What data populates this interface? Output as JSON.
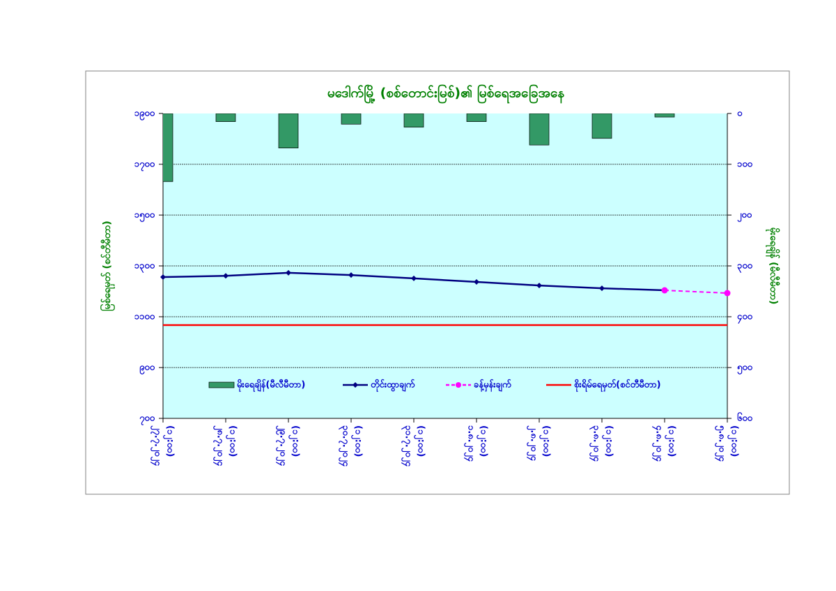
{
  "chart_data": {
    "type": "bar_line",
    "title": "မဒေါက်မြို့ (စစ်တောင်းမြစ်)၏ မြစ်ရေအခြေအနေ",
    "y_label": "မြစ်ရေမှတ် (စင်တီမီတာ)",
    "y2_label": "မိုးရေချိန် (မီလီမီတာ)",
    "categories": [
      [
        "၂၇.၇.၂၀၂၄",
        "(၁၂:၀၀)"
      ],
      [
        "၂၈.၇.၂၀၂၄",
        "(၁၂:၀၀)"
      ],
      [
        "၂၉.၇.၂၀၂၄",
        "(၁၂:၀၀)"
      ],
      [
        "၃၀.၇.၂၀၂၄",
        "(၁၂:၀၀)"
      ],
      [
        "၃၁.၇.၂၀၂၄",
        "(၁၂:၀၀)"
      ],
      [
        "၁.၈.၂၀၂၄",
        "(၁၂:၀၀)"
      ],
      [
        "၂.၈.၂၀၂၄",
        "(၁၂:၀၀)"
      ],
      [
        "၃.၈.၂၀၂၄",
        "(၁၂:၀၀)"
      ],
      [
        "၄.၈.၂၀၂၄",
        "(၁၂:၀၀)"
      ],
      [
        "၅.၈.၂၀၂၄",
        "(၁၂:၀၀)"
      ]
    ],
    "ylim": [
      700,
      1900
    ],
    "yticks": [
      {
        "value": 700,
        "label": "၇၀၀"
      },
      {
        "value": 900,
        "label": "၉၀၀"
      },
      {
        "value": 1100,
        "label": "၁၁၀၀"
      },
      {
        "value": 1300,
        "label": "၁၃၀၀"
      },
      {
        "value": 1500,
        "label": "၁၅၀၀"
      },
      {
        "value": 1700,
        "label": "၁၇၀၀"
      },
      {
        "value": 1900,
        "label": "၁၉၀၀"
      }
    ],
    "y2lim": [
      600,
      0
    ],
    "y2ticks": [
      {
        "value": 600,
        "label": "၆၀၀"
      },
      {
        "value": 500,
        "label": "၅၀၀"
      },
      {
        "value": 400,
        "label": "၄၀၀"
      },
      {
        "value": 300,
        "label": "၃၀၀"
      },
      {
        "value": 200,
        "label": "၂၀၀"
      },
      {
        "value": 100,
        "label": "၁၀၀"
      },
      {
        "value": 0,
        "label": "၀"
      }
    ],
    "grid": true,
    "series": [
      {
        "name": "မိုးရေချိန်(မီလီမီတာ)",
        "type": "bar",
        "axis": "y2",
        "color": "#339966",
        "values": [
          134,
          16,
          68,
          21,
          27,
          16,
          62,
          49,
          7,
          null
        ]
      },
      {
        "name": "တိုင်းထွာချက်",
        "type": "line",
        "color": "#000080",
        "values": [
          1256,
          1261,
          1273,
          1264,
          1251,
          1237,
          1223,
          1212,
          1204,
          null
        ]
      },
      {
        "name": "ခန့်မှန်းချက်",
        "type": "line",
        "dashed": true,
        "color": "#ff00ff",
        "values": [
          null,
          null,
          null,
          null,
          null,
          null,
          null,
          null,
          1204,
          1193
        ]
      },
      {
        "name": "စိုးရိမ်ရေမှတ်(စင်တီမီတာ)",
        "type": "hline",
        "color": "#ff0000",
        "value": 1067
      }
    ]
  }
}
